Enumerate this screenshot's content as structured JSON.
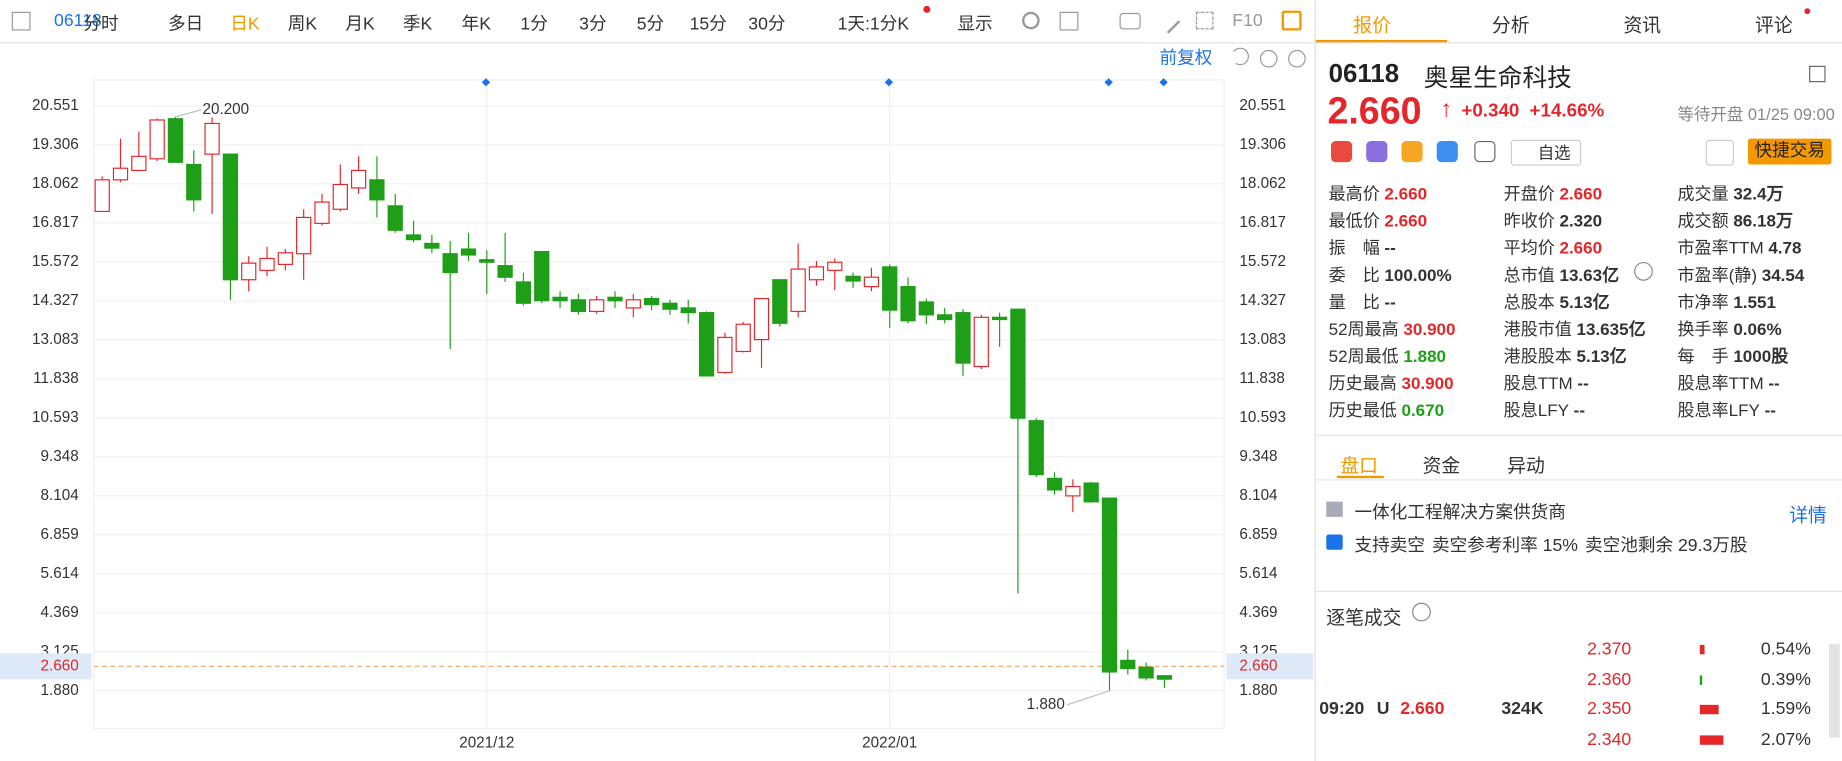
{
  "toolbar": {
    "code": "06118",
    "tabs": [
      "分时",
      "多日",
      "日K",
      "周K",
      "月K",
      "季K",
      "年K",
      "1分",
      "3分",
      "5分",
      "15分",
      "30分"
    ],
    "period": "1天:1分K",
    "display": "显示",
    "f10": "F10"
  },
  "chart_adjust": "前复权",
  "chart_data": {
    "type": "candlestick",
    "categories": [
      null,
      null,
      null,
      null,
      null,
      null,
      null,
      null,
      null,
      null,
      null,
      null,
      null,
      null,
      null,
      null,
      null,
      null,
      null,
      null,
      null,
      "2021/12",
      null,
      null,
      null,
      null,
      null,
      null,
      null,
      null,
      null,
      null,
      null,
      null,
      null,
      null,
      null,
      null,
      null,
      null,
      null,
      null,
      null,
      "2022/01",
      null,
      null,
      null,
      null,
      null,
      null,
      null,
      null,
      null,
      null,
      null,
      null,
      null,
      null,
      null
    ],
    "open": [
      17.18,
      18.19,
      18.49,
      18.86,
      20.14,
      18.68,
      19.01,
      19.01,
      15.0,
      15.3,
      15.49,
      15.83,
      16.8,
      17.25,
      17.93,
      18.19,
      17.36,
      16.43,
      16.16,
      15.83,
      15.98,
      15.64,
      15.45,
      14.93,
      15.9,
      14.44,
      14.36,
      13.99,
      14.44,
      14.1,
      14.4,
      14.25,
      14.1,
      13.95,
      12.04,
      12.71,
      13.09,
      15.0,
      13.99,
      15.0,
      15.3,
      15.11,
      14.78,
      15.41,
      14.78,
      14.29,
      13.88,
      13.95,
      12.23,
      13.8,
      14.06,
      10.5,
      8.66,
      8.1,
      8.51,
      8.03,
      2.85,
      2.63,
      2.36
    ],
    "high": [
      18.3,
      19.5,
      19.73,
      20.15,
      20.2,
      19.13,
      20.18,
      19.01,
      15.75,
      16.05,
      15.98,
      17.25,
      17.74,
      18.68,
      18.94,
      18.94,
      17.74,
      16.88,
      16.43,
      16.24,
      16.5,
      15.94,
      16.5,
      15.23,
      15.9,
      14.63,
      14.55,
      14.48,
      14.63,
      14.55,
      14.48,
      14.36,
      14.36,
      13.99,
      13.31,
      13.65,
      14.4,
      15.0,
      16.16,
      15.6,
      15.68,
      15.23,
      15.38,
      15.49,
      15.08,
      14.4,
      14.1,
      14.06,
      13.88,
      13.95,
      14.06,
      10.58,
      8.85,
      8.63,
      8.55,
      8.03,
      3.19,
      2.78,
      2.36
    ],
    "low": [
      17.18,
      18.11,
      18.49,
      18.79,
      18.75,
      17.18,
      17.1,
      14.36,
      14.63,
      15.11,
      15.3,
      15.0,
      16.73,
      17.18,
      17.74,
      16.99,
      16.5,
      16.2,
      15.86,
      12.79,
      15.6,
      14.55,
      14.93,
      14.18,
      14.25,
      14.1,
      13.88,
      13.91,
      14.1,
      13.8,
      14.03,
      13.88,
      13.61,
      11.93,
      12.0,
      12.68,
      12.19,
      13.5,
      13.8,
      14.81,
      14.66,
      14.74,
      14.63,
      13.46,
      13.61,
      13.58,
      13.61,
      11.93,
      12.15,
      12.86,
      4.99,
      8.7,
      8.14,
      7.58,
      7.88,
      1.88,
      2.4,
      2.21,
      1.97
    ],
    "close": [
      18.19,
      18.56,
      18.94,
      20.1,
      18.75,
      17.55,
      19.99,
      15.0,
      15.53,
      15.68,
      15.86,
      16.99,
      17.48,
      18.04,
      18.49,
      17.55,
      16.58,
      16.28,
      16.01,
      15.23,
      15.79,
      15.56,
      15.08,
      14.25,
      14.33,
      14.33,
      13.99,
      14.36,
      14.33,
      14.36,
      14.21,
      14.06,
      13.95,
      11.93,
      13.16,
      13.58,
      14.4,
      13.61,
      15.34,
      15.41,
      15.56,
      14.96,
      15.08,
      14.03,
      13.69,
      13.88,
      13.73,
      12.34,
      13.8,
      13.73,
      10.58,
      8.78,
      8.29,
      8.4,
      7.91,
      2.48,
      2.59,
      2.29,
      2.25
    ],
    "up_color": "#e5262a",
    "down_color": "#1f9e18",
    "ylim": [
      0.68,
      21.38
    ],
    "yticks": [
      {
        "value": 1.88,
        "label": "1.880"
      },
      {
        "value": 3.125,
        "label": "3.125"
      },
      {
        "value": 4.369,
        "label": "4.369"
      },
      {
        "value": 5.614,
        "label": "5.614"
      },
      {
        "value": 6.859,
        "label": "6.859"
      },
      {
        "value": 8.104,
        "label": "8.104"
      },
      {
        "value": 9.348,
        "label": "9.348"
      },
      {
        "value": 10.593,
        "label": "10.593"
      },
      {
        "value": 11.838,
        "label": "11.838"
      },
      {
        "value": 13.083,
        "label": "13.083"
      },
      {
        "value": 14.327,
        "label": "14.327"
      },
      {
        "value": 15.572,
        "label": "15.572"
      },
      {
        "value": 16.817,
        "label": "16.817"
      },
      {
        "value": 18.062,
        "label": "18.062"
      },
      {
        "value": 19.306,
        "label": "19.306"
      },
      {
        "value": 20.551,
        "label": "20.551"
      }
    ],
    "max_label": {
      "value": 20.2,
      "label": "20.200"
    },
    "min_label": {
      "value": 1.88,
      "label": "1.880"
    },
    "current_price": {
      "value": 2.66,
      "label": "2.660"
    },
    "grid": true
  },
  "panel": {
    "tabs": [
      "报价",
      "分析",
      "资讯",
      "评论"
    ],
    "code": "06118",
    "name": "奥星生命科技",
    "price": "2.660",
    "change": "+0.340",
    "change_pct": "+14.66%",
    "status": "等待开盘 01/25 09:00",
    "watch": "自选",
    "trade": "快捷交易",
    "stats": [
      [
        {
          "label": "最高价",
          "value": "2.660"
        },
        {
          "label": "最低价",
          "value": "2.660"
        },
        {
          "label": "振　幅",
          "value": "--"
        },
        {
          "label": "委　比",
          "value": "100.00%"
        },
        {
          "label": "量　比",
          "value": "--"
        },
        {
          "label": "52周最高",
          "value": "30.900"
        },
        {
          "label": "52周最低",
          "value": "1.880"
        },
        {
          "label": "历史最高",
          "value": "30.900"
        },
        {
          "label": "历史最低",
          "value": "0.670"
        }
      ],
      [
        {
          "label": "开盘价",
          "value": "2.660"
        },
        {
          "label": "昨收价",
          "value": "2.320"
        },
        {
          "label": "平均价",
          "value": "2.660"
        },
        {
          "label": "总市值",
          "value": "13.63亿"
        },
        {
          "label": "总股本",
          "value": "5.13亿"
        },
        {
          "label": "港股市值",
          "value": "13.635亿"
        },
        {
          "label": "港股股本",
          "value": "5.13亿"
        },
        {
          "label": "股息TTM",
          "value": "--"
        },
        {
          "label": "股息LFY",
          "value": "--"
        }
      ],
      [
        {
          "label": "成交量",
          "value": "32.4万"
        },
        {
          "label": "成交额",
          "value": "86.18万"
        },
        {
          "label": "市盈率TTM",
          "value": "4.78"
        },
        {
          "label": "市盈率(静)",
          "value": "34.54"
        },
        {
          "label": "市净率",
          "value": "1.551"
        },
        {
          "label": "换手率",
          "value": "0.06%"
        },
        {
          "label": "每　手",
          "value": "1000股"
        },
        {
          "label": "股息率TTM",
          "value": "--"
        },
        {
          "label": "股息率LFY",
          "value": "--"
        }
      ]
    ],
    "subtabs": [
      "盘口",
      "资金",
      "异动"
    ],
    "business": "一体化工程解决方案供货商",
    "details": "详情",
    "short": [
      "支持卖空",
      "卖空参考利率 15%",
      "卖空池剩余 29.3万股"
    ],
    "ticks_title": "逐笔成交",
    "trade_row": {
      "time": "09:20",
      "flag": "U",
      "price": "2.660",
      "volume": "324K"
    },
    "levels": [
      {
        "price": "2.370",
        "pct": "0.54%"
      },
      {
        "price": "2.360",
        "pct": "0.39%"
      },
      {
        "price": "2.350",
        "pct": "1.59%"
      },
      {
        "price": "2.340",
        "pct": "2.07%"
      }
    ]
  }
}
